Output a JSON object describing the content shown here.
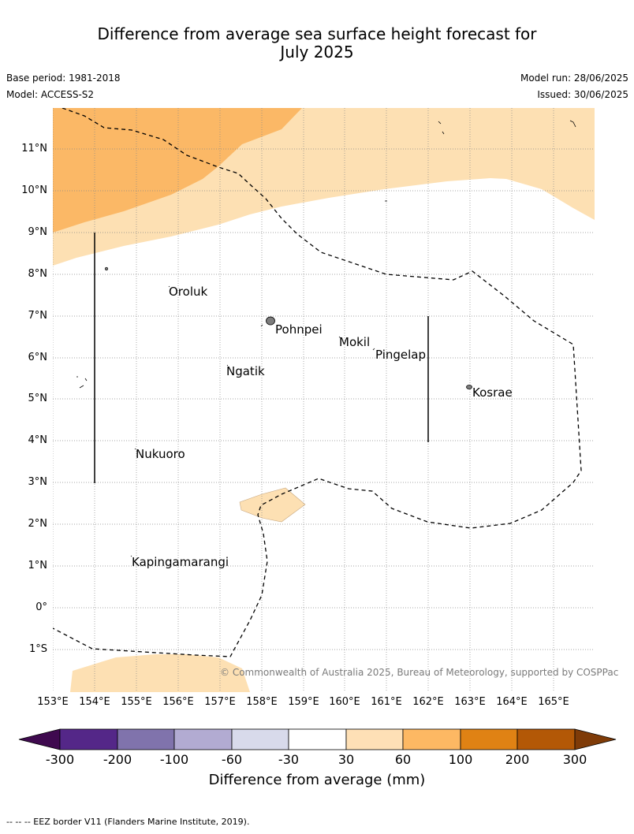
{
  "title": "Difference from average sea surface height forecast for\nJuly 2025",
  "meta": {
    "base_period": "Base period: 1981-2018",
    "model": "Model: ACCESS-S2",
    "model_run": "Model run: 28/06/2025",
    "issued": "Issued: 30/06/2025"
  },
  "map": {
    "lat_labels": [
      "11°N",
      "10°N",
      "9°N",
      "8°N",
      "7°N",
      "6°N",
      "5°N",
      "4°N",
      "3°N",
      "2°N",
      "1°N",
      "0°",
      "1°S"
    ],
    "lon_labels": [
      "153°E",
      "154°E",
      "155°E",
      "156°E",
      "157°E",
      "158°E",
      "159°E",
      "160°E",
      "161°E",
      "162°E",
      "163°E",
      "164°E",
      "165°E"
    ],
    "places": [
      "Oroluk",
      "Pohnpei",
      "Mokil",
      "Pingelap",
      "Ngatik",
      "Kosrae",
      "Nukuoro",
      "Kapingamarangi"
    ],
    "copyright": "© Commonwealth of Australia 2025, Bureau of Meteorology, supported by COSPPac",
    "fill_colors": {
      "light_orange": "#fde0b3",
      "mid_orange": "#fbb866"
    }
  },
  "colorbar": {
    "title": "Difference from average (mm)",
    "ticks": [
      "-300",
      "-200",
      "-100",
      "-60",
      "-30",
      "30",
      "60",
      "100",
      "200",
      "300"
    ],
    "colors": [
      "#3f0a4f",
      "#542788",
      "#8073ac",
      "#b2abd2",
      "#d8daeb",
      "#ffffff",
      "#fee0b6",
      "#fdb863",
      "#e08214",
      "#b35806",
      "#7f3b08"
    ]
  },
  "footer": "--  --  -- EEZ border V11 (Flanders Marine Institute, 2019)."
}
